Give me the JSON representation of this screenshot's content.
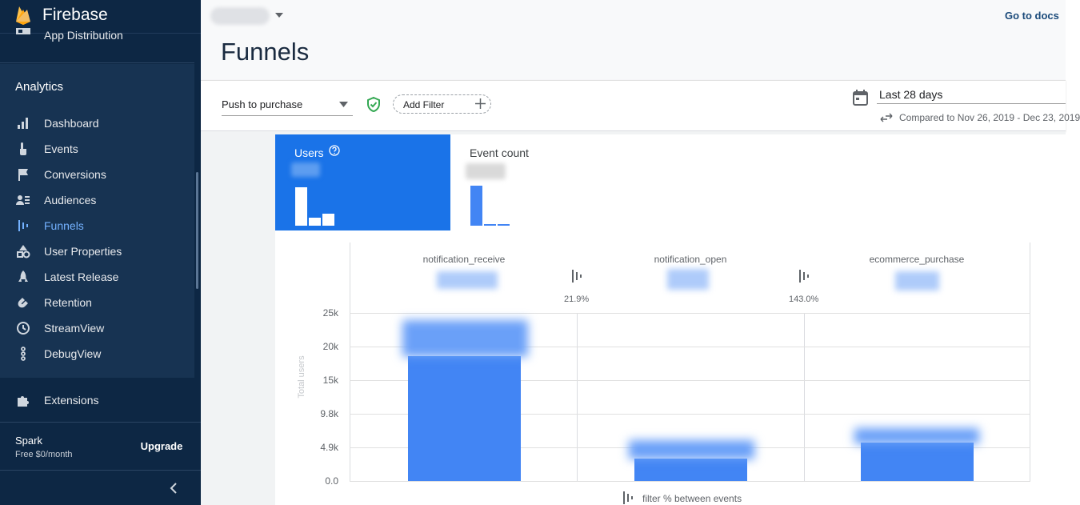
{
  "sidebar": {
    "brand": "Firebase",
    "app_distribution": "App Distribution",
    "section_title": "Analytics",
    "items": [
      {
        "label": "Dashboard",
        "icon": "bar-chart-icon",
        "active": false
      },
      {
        "label": "Events",
        "icon": "touch-icon",
        "active": false
      },
      {
        "label": "Conversions",
        "icon": "flag-icon",
        "active": false
      },
      {
        "label": "Audiences",
        "icon": "people-icon",
        "active": false
      },
      {
        "label": "Funnels",
        "icon": "funnel-icon",
        "active": true
      },
      {
        "label": "User Properties",
        "icon": "shapes-icon",
        "active": false
      },
      {
        "label": "Latest Release",
        "icon": "rocket-icon",
        "active": false
      },
      {
        "label": "Retention",
        "icon": "magnet-icon",
        "active": false
      },
      {
        "label": "StreamView",
        "icon": "clock-icon",
        "active": false
      },
      {
        "label": "DebugView",
        "icon": "debug-icon",
        "active": false
      }
    ],
    "extensions": "Extensions",
    "plan": {
      "name": "Spark",
      "price": "Free $0/month",
      "upgrade_label": "Upgrade"
    }
  },
  "header": {
    "docs_link": "Go to docs",
    "page_title": "Funnels"
  },
  "toolbar": {
    "funnel_name": "Push to purchase",
    "add_filter_label": "Add Filter",
    "date_range": "Last 28 days",
    "compared_to": "Compared to Nov 26, 2019 - Dec 23, 2019"
  },
  "tabs": {
    "users_label": "Users",
    "event_count_label": "Event count"
  },
  "chart_data": {
    "type": "bar",
    "categories": [
      "notification_receive",
      "notification_open",
      "ecommerce_purchase"
    ],
    "step_conversion": [
      "21.9%",
      "143.0%"
    ],
    "yticks": [
      "25k",
      "20k",
      "15k",
      "9.8k",
      "4.9k",
      "0.0"
    ],
    "ylabel": "Total users",
    "footer": "filter % between events",
    "ylim": [
      0,
      25000
    ]
  },
  "colors": {
    "sidebar_bg": "#0d2744",
    "accent": "#1a73e8",
    "bar": "#4285f4",
    "active_nav": "#74b2ff"
  }
}
